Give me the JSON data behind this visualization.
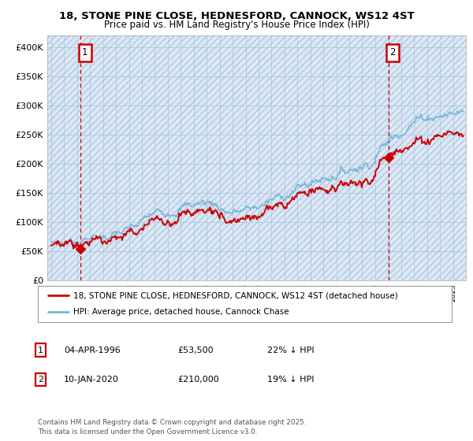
{
  "title": "18, STONE PINE CLOSE, HEDNESFORD, CANNOCK, WS12 4ST",
  "subtitle": "Price paid vs. HM Land Registry's House Price Index (HPI)",
  "legend_line1": "18, STONE PINE CLOSE, HEDNESFORD, CANNOCK, WS12 4ST (detached house)",
  "legend_line2": "HPI: Average price, detached house, Cannock Chase",
  "annotation1_date": "04-APR-1996",
  "annotation1_price": "£53,500",
  "annotation1_hpi": "22% ↓ HPI",
  "annotation2_date": "10-JAN-2020",
  "annotation2_price": "£210,000",
  "annotation2_hpi": "19% ↓ HPI",
  "footnote": "Contains HM Land Registry data © Crown copyright and database right 2025.\nThis data is licensed under the Open Government Licence v3.0.",
  "hpi_color": "#7ab4d8",
  "price_color": "#cc0000",
  "marker_color": "#cc0000",
  "annotation_box_color": "#cc0000",
  "background_plot": "#dce8f5",
  "background_fig": "#ffffff",
  "grid_color": "#afc8e0",
  "ylim": [
    0,
    420000
  ],
  "yticks": [
    0,
    50000,
    100000,
    150000,
    200000,
    250000,
    300000,
    350000,
    400000
  ],
  "sale1_year": 1996.27,
  "sale1_value": 53500,
  "sale2_year": 2020.03,
  "sale2_value": 210000,
  "xstart": 1994,
  "xend": 2025.5
}
